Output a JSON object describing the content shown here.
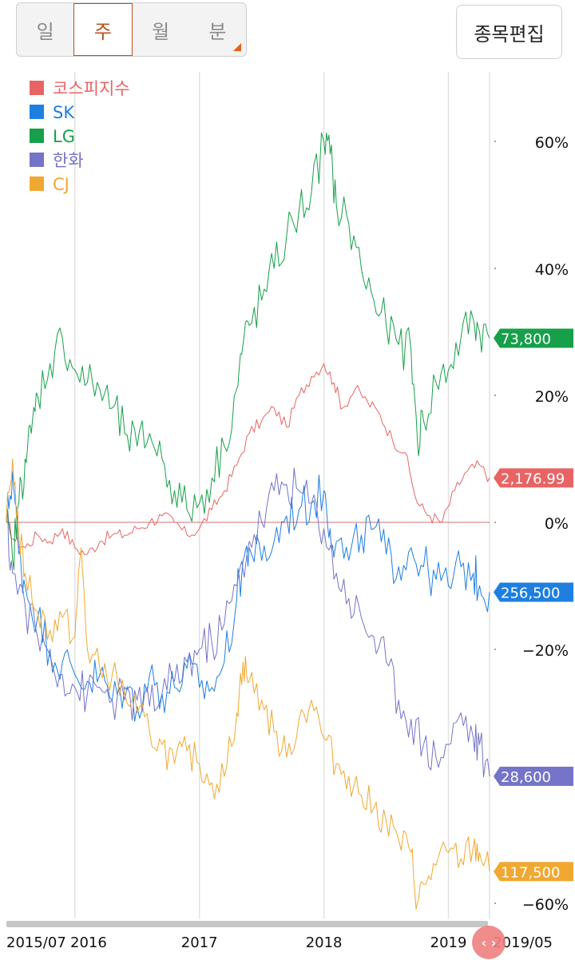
{
  "period_tabs": [
    {
      "label": "일",
      "active": false
    },
    {
      "label": "주",
      "active": true
    },
    {
      "label": "월",
      "active": false
    },
    {
      "label": "분",
      "active": false
    }
  ],
  "edit_button": {
    "label": "종목편집"
  },
  "colors": {
    "kospi": "#e86464",
    "sk": "#1e7fe0",
    "lg": "#16a04a",
    "hanwha": "#7474c8",
    "cj": "#f0a830",
    "grid": "#e2e2e2",
    "baseline": "#d07070",
    "scrollbar": "#c6c6c6",
    "handle": "#f08080"
  },
  "chart_data": {
    "type": "line",
    "title": "",
    "xlabel": "",
    "ylabel": "",
    "y_unit": "%",
    "ylim": [
      -62,
      68
    ],
    "xlim": [
      2015.45,
      2019.33
    ],
    "y_ticks": [
      60,
      40,
      20,
      0,
      -20,
      -40,
      -60
    ],
    "y_tick_labels": [
      "60%",
      "40%",
      "20%",
      "0%",
      "−20%",
      "",
      "−60%"
    ],
    "x_ticks": [
      {
        "x": 2015.5,
        "label": "2015/07"
      },
      {
        "x": 2016.0,
        "label": "2016"
      },
      {
        "x": 2017.0,
        "label": "2017"
      },
      {
        "x": 2018.0,
        "label": "2018"
      },
      {
        "x": 2019.0,
        "label": "2019"
      },
      {
        "x": 2019.33,
        "label": "2019/05"
      }
    ],
    "legend_position": "top-left",
    "series": [
      {
        "name": "코스피지수",
        "color_key": "kospi",
        "end_label": "2,176.99",
        "points": [
          [
            2015.45,
            0
          ],
          [
            2015.52,
            -3
          ],
          [
            2015.6,
            -4
          ],
          [
            2015.7,
            -2
          ],
          [
            2015.8,
            -3
          ],
          [
            2015.9,
            -1
          ],
          [
            2016.0,
            -4
          ],
          [
            2016.1,
            -5
          ],
          [
            2016.2,
            -3
          ],
          [
            2016.3,
            -2
          ],
          [
            2016.4,
            -2
          ],
          [
            2016.5,
            -1
          ],
          [
            2016.6,
            0
          ],
          [
            2016.7,
            1
          ],
          [
            2016.8,
            0
          ],
          [
            2016.9,
            -2
          ],
          [
            2017.0,
            -1
          ],
          [
            2017.1,
            2
          ],
          [
            2017.2,
            5
          ],
          [
            2017.3,
            9
          ],
          [
            2017.4,
            14
          ],
          [
            2017.5,
            16
          ],
          [
            2017.6,
            18
          ],
          [
            2017.7,
            15
          ],
          [
            2017.8,
            20
          ],
          [
            2017.9,
            23
          ],
          [
            2018.0,
            25
          ],
          [
            2018.08,
            22
          ],
          [
            2018.15,
            18
          ],
          [
            2018.25,
            21
          ],
          [
            2018.35,
            19
          ],
          [
            2018.45,
            17
          ],
          [
            2018.55,
            13
          ],
          [
            2018.65,
            11
          ],
          [
            2018.75,
            3
          ],
          [
            2018.85,
            1
          ],
          [
            2018.95,
            0
          ],
          [
            2019.05,
            5
          ],
          [
            2019.15,
            8
          ],
          [
            2019.25,
            9
          ],
          [
            2019.33,
            7
          ]
        ]
      },
      {
        "name": "SK",
        "color_key": "sk",
        "end_label": "256,500",
        "points": [
          [
            2015.45,
            0
          ],
          [
            2015.5,
            8
          ],
          [
            2015.55,
            -5
          ],
          [
            2015.6,
            -10
          ],
          [
            2015.7,
            -15
          ],
          [
            2015.8,
            -20
          ],
          [
            2015.9,
            -22
          ],
          [
            2016.0,
            -24
          ],
          [
            2016.1,
            -25
          ],
          [
            2016.2,
            -24
          ],
          [
            2016.3,
            -28
          ],
          [
            2016.4,
            -26
          ],
          [
            2016.5,
            -29
          ],
          [
            2016.6,
            -24
          ],
          [
            2016.7,
            -27
          ],
          [
            2016.8,
            -26
          ],
          [
            2016.9,
            -23
          ],
          [
            2017.0,
            -26
          ],
          [
            2017.1,
            -26
          ],
          [
            2017.2,
            -22
          ],
          [
            2017.3,
            -12
          ],
          [
            2017.35,
            -6
          ],
          [
            2017.4,
            -4
          ],
          [
            2017.5,
            -6
          ],
          [
            2017.6,
            -3
          ],
          [
            2017.7,
            1
          ],
          [
            2017.8,
            2
          ],
          [
            2017.9,
            3
          ],
          [
            2018.0,
            5
          ],
          [
            2018.05,
            -1
          ],
          [
            2018.1,
            -3
          ],
          [
            2018.2,
            -6
          ],
          [
            2018.3,
            -2
          ],
          [
            2018.4,
            -1
          ],
          [
            2018.5,
            -5
          ],
          [
            2018.6,
            -7
          ],
          [
            2018.7,
            -4
          ],
          [
            2018.8,
            -7
          ],
          [
            2018.9,
            -9
          ],
          [
            2019.0,
            -10
          ],
          [
            2019.1,
            -7
          ],
          [
            2019.2,
            -8
          ],
          [
            2019.25,
            -10
          ],
          [
            2019.33,
            -11
          ]
        ]
      },
      {
        "name": "LG",
        "color_key": "lg",
        "end_label": "73,800",
        "points": [
          [
            2015.45,
            0
          ],
          [
            2015.5,
            -6
          ],
          [
            2015.55,
            3
          ],
          [
            2015.6,
            10
          ],
          [
            2015.65,
            14
          ],
          [
            2015.7,
            20
          ],
          [
            2015.8,
            25
          ],
          [
            2015.9,
            29
          ],
          [
            2016.0,
            24
          ],
          [
            2016.1,
            22
          ],
          [
            2016.2,
            21
          ],
          [
            2016.3,
            18
          ],
          [
            2016.4,
            14
          ],
          [
            2016.5,
            12
          ],
          [
            2016.6,
            14
          ],
          [
            2016.7,
            10
          ],
          [
            2016.8,
            5
          ],
          [
            2016.9,
            2
          ],
          [
            2017.0,
            3
          ],
          [
            2017.1,
            7
          ],
          [
            2017.2,
            12
          ],
          [
            2017.3,
            21
          ],
          [
            2017.35,
            28
          ],
          [
            2017.4,
            31
          ],
          [
            2017.5,
            35
          ],
          [
            2017.6,
            40
          ],
          [
            2017.7,
            45
          ],
          [
            2017.8,
            49
          ],
          [
            2017.9,
            52
          ],
          [
            2018.0,
            60
          ],
          [
            2018.05,
            58
          ],
          [
            2018.1,
            50
          ],
          [
            2018.2,
            47
          ],
          [
            2018.3,
            40
          ],
          [
            2018.4,
            35
          ],
          [
            2018.5,
            31
          ],
          [
            2018.6,
            28
          ],
          [
            2018.7,
            27
          ],
          [
            2018.75,
            13
          ],
          [
            2018.8,
            16
          ],
          [
            2018.9,
            22
          ],
          [
            2019.0,
            24
          ],
          [
            2019.1,
            29
          ],
          [
            2019.2,
            32
          ],
          [
            2019.25,
            30
          ],
          [
            2019.33,
            29
          ]
        ]
      },
      {
        "name": "한화",
        "color_key": "hanwha",
        "end_label": "28,600",
        "points": [
          [
            2015.45,
            0
          ],
          [
            2015.5,
            -8
          ],
          [
            2015.6,
            -13
          ],
          [
            2015.7,
            -18
          ],
          [
            2015.8,
            -21
          ],
          [
            2015.9,
            -24
          ],
          [
            2016.0,
            -26
          ],
          [
            2016.1,
            -27
          ],
          [
            2016.2,
            -26
          ],
          [
            2016.3,
            -28
          ],
          [
            2016.4,
            -28
          ],
          [
            2016.5,
            -28
          ],
          [
            2016.6,
            -29
          ],
          [
            2016.7,
            -27
          ],
          [
            2016.8,
            -25
          ],
          [
            2016.9,
            -22
          ],
          [
            2017.0,
            -20
          ],
          [
            2017.1,
            -19
          ],
          [
            2017.2,
            -16
          ],
          [
            2017.3,
            -10
          ],
          [
            2017.4,
            -3
          ],
          [
            2017.5,
            0
          ],
          [
            2017.6,
            5
          ],
          [
            2017.7,
            6
          ],
          [
            2017.8,
            5
          ],
          [
            2017.9,
            3
          ],
          [
            2018.0,
            -1
          ],
          [
            2018.1,
            -8
          ],
          [
            2018.2,
            -12
          ],
          [
            2018.3,
            -15
          ],
          [
            2018.4,
            -18
          ],
          [
            2018.5,
            -22
          ],
          [
            2018.6,
            -28
          ],
          [
            2018.7,
            -31
          ],
          [
            2018.8,
            -35
          ],
          [
            2018.9,
            -37
          ],
          [
            2019.0,
            -35
          ],
          [
            2019.1,
            -30
          ],
          [
            2019.2,
            -34
          ],
          [
            2019.25,
            -35
          ],
          [
            2019.33,
            -40
          ]
        ]
      },
      {
        "name": "CJ",
        "color_key": "cj",
        "end_label": "117,500",
        "points": [
          [
            2015.45,
            0
          ],
          [
            2015.5,
            10
          ],
          [
            2015.55,
            -2
          ],
          [
            2015.6,
            -8
          ],
          [
            2015.7,
            -14
          ],
          [
            2015.8,
            -17
          ],
          [
            2015.9,
            -15
          ],
          [
            2016.0,
            -18
          ],
          [
            2016.05,
            -4
          ],
          [
            2016.1,
            -20
          ],
          [
            2016.2,
            -23
          ],
          [
            2016.3,
            -24
          ],
          [
            2016.4,
            -27
          ],
          [
            2016.5,
            -30
          ],
          [
            2016.6,
            -33
          ],
          [
            2016.7,
            -35
          ],
          [
            2016.8,
            -38
          ],
          [
            2016.9,
            -36
          ],
          [
            2017.0,
            -38
          ],
          [
            2017.1,
            -41
          ],
          [
            2017.2,
            -40
          ],
          [
            2017.3,
            -30
          ],
          [
            2017.35,
            -22
          ],
          [
            2017.4,
            -25
          ],
          [
            2017.5,
            -28
          ],
          [
            2017.6,
            -33
          ],
          [
            2017.7,
            -37
          ],
          [
            2017.8,
            -31
          ],
          [
            2017.9,
            -28
          ],
          [
            2018.0,
            -34
          ],
          [
            2018.1,
            -38
          ],
          [
            2018.2,
            -40
          ],
          [
            2018.3,
            -43
          ],
          [
            2018.4,
            -45
          ],
          [
            2018.5,
            -47
          ],
          [
            2018.6,
            -50
          ],
          [
            2018.7,
            -52
          ],
          [
            2018.75,
            -60
          ],
          [
            2018.8,
            -57
          ],
          [
            2018.9,
            -54
          ],
          [
            2019.0,
            -52
          ],
          [
            2019.1,
            -53
          ],
          [
            2019.2,
            -51
          ],
          [
            2019.25,
            -52
          ],
          [
            2019.33,
            -55
          ]
        ]
      }
    ]
  }
}
